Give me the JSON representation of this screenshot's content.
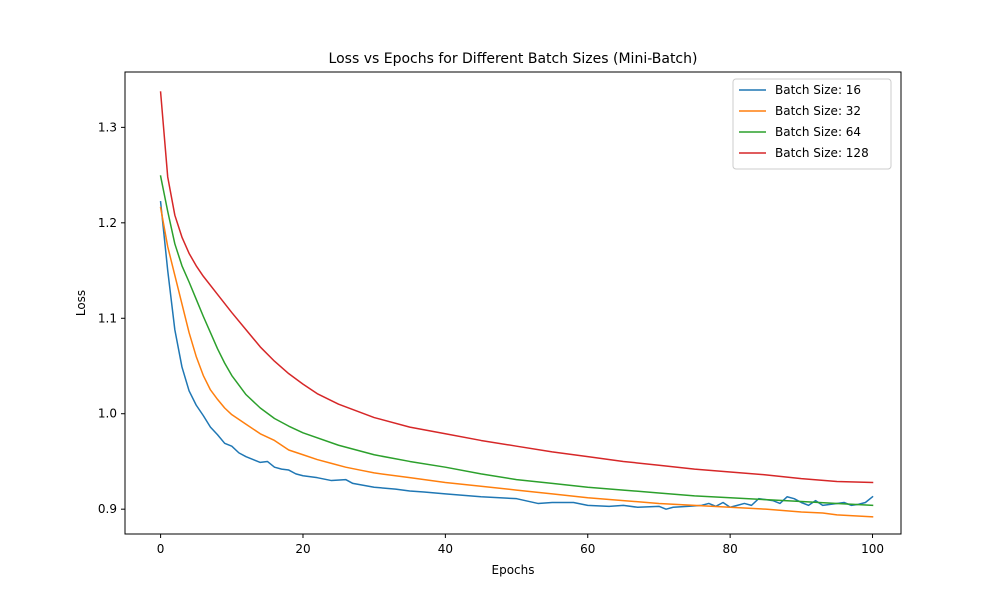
{
  "chart_data": {
    "type": "line",
    "title": "Loss vs Epochs for Different Batch Sizes (Mini-Batch)",
    "xlabel": "Epochs",
    "ylabel": "Loss",
    "xlim": [
      -5,
      104
    ],
    "ylim": [
      0.874,
      1.358
    ],
    "x_ticks": [
      0,
      20,
      40,
      60,
      80,
      100
    ],
    "y_ticks": [
      0.9,
      1.0,
      1.1,
      1.2,
      1.3
    ],
    "x_tick_labels": [
      "0",
      "20",
      "40",
      "60",
      "80",
      "100"
    ],
    "y_tick_labels": [
      "0.9",
      "1.0",
      "1.1",
      "1.2",
      "1.3"
    ],
    "grid": false,
    "legend_position": "top-right",
    "series": [
      {
        "name": "Batch Size: 16",
        "color": "#1f77b4",
        "points": [
          [
            0,
            1.222
          ],
          [
            1,
            1.15
          ],
          [
            2,
            1.088
          ],
          [
            3,
            1.049
          ],
          [
            4,
            1.024
          ],
          [
            5,
            1.009
          ],
          [
            6,
            0.998
          ],
          [
            7,
            0.986
          ],
          [
            8,
            0.978
          ],
          [
            9,
            0.969
          ],
          [
            10,
            0.966
          ],
          [
            11,
            0.959
          ],
          [
            12,
            0.955
          ],
          [
            13,
            0.952
          ],
          [
            14,
            0.949
          ],
          [
            15,
            0.95
          ],
          [
            16,
            0.944
          ],
          [
            17,
            0.942
          ],
          [
            18,
            0.941
          ],
          [
            19,
            0.937
          ],
          [
            20,
            0.935
          ],
          [
            22,
            0.933
          ],
          [
            24,
            0.93
          ],
          [
            26,
            0.931
          ],
          [
            27,
            0.927
          ],
          [
            30,
            0.923
          ],
          [
            33,
            0.921
          ],
          [
            35,
            0.919
          ],
          [
            37,
            0.918
          ],
          [
            40,
            0.916
          ],
          [
            45,
            0.913
          ],
          [
            50,
            0.911
          ],
          [
            53,
            0.906
          ],
          [
            55,
            0.907
          ],
          [
            58,
            0.907
          ],
          [
            60,
            0.904
          ],
          [
            63,
            0.903
          ],
          [
            65,
            0.904
          ],
          [
            67,
            0.902
          ],
          [
            70,
            0.903
          ],
          [
            71,
            0.9
          ],
          [
            72,
            0.902
          ],
          [
            74,
            0.903
          ],
          [
            76,
            0.904
          ],
          [
            77,
            0.906
          ],
          [
            78,
            0.903
          ],
          [
            79,
            0.907
          ],
          [
            80,
            0.902
          ],
          [
            81,
            0.904
          ],
          [
            82,
            0.906
          ],
          [
            83,
            0.904
          ],
          [
            84,
            0.911
          ],
          [
            85,
            0.91
          ],
          [
            86,
            0.909
          ],
          [
            87,
            0.906
          ],
          [
            88,
            0.913
          ],
          [
            89,
            0.911
          ],
          [
            90,
            0.907
          ],
          [
            91,
            0.904
          ],
          [
            92,
            0.909
          ],
          [
            93,
            0.904
          ],
          [
            95,
            0.906
          ],
          [
            96,
            0.907
          ],
          [
            97,
            0.904
          ],
          [
            98,
            0.905
          ],
          [
            99,
            0.907
          ],
          [
            100,
            0.913
          ]
        ]
      },
      {
        "name": "Batch Size: 32",
        "color": "#ff7f0e",
        "points": [
          [
            0,
            1.216
          ],
          [
            1,
            1.175
          ],
          [
            2,
            1.145
          ],
          [
            3,
            1.115
          ],
          [
            4,
            1.085
          ],
          [
            5,
            1.06
          ],
          [
            6,
            1.04
          ],
          [
            7,
            1.025
          ],
          [
            8,
            1.015
          ],
          [
            9,
            1.006
          ],
          [
            10,
            0.999
          ],
          [
            12,
            0.989
          ],
          [
            14,
            0.979
          ],
          [
            16,
            0.972
          ],
          [
            18,
            0.962
          ],
          [
            20,
            0.957
          ],
          [
            22,
            0.952
          ],
          [
            24,
            0.948
          ],
          [
            26,
            0.944
          ],
          [
            28,
            0.941
          ],
          [
            30,
            0.938
          ],
          [
            35,
            0.933
          ],
          [
            40,
            0.928
          ],
          [
            45,
            0.924
          ],
          [
            50,
            0.92
          ],
          [
            55,
            0.916
          ],
          [
            60,
            0.912
          ],
          [
            65,
            0.909
          ],
          [
            70,
            0.906
          ],
          [
            75,
            0.904
          ],
          [
            80,
            0.902
          ],
          [
            85,
            0.9
          ],
          [
            90,
            0.897
          ],
          [
            93,
            0.896
          ],
          [
            95,
            0.894
          ],
          [
            100,
            0.892
          ]
        ]
      },
      {
        "name": "Batch Size: 64",
        "color": "#2ca02c",
        "points": [
          [
            0,
            1.249
          ],
          [
            1,
            1.212
          ],
          [
            2,
            1.178
          ],
          [
            3,
            1.155
          ],
          [
            4,
            1.138
          ],
          [
            5,
            1.12
          ],
          [
            6,
            1.102
          ],
          [
            7,
            1.085
          ],
          [
            8,
            1.068
          ],
          [
            9,
            1.053
          ],
          [
            10,
            1.04
          ],
          [
            12,
            1.02
          ],
          [
            14,
            1.006
          ],
          [
            16,
            0.995
          ],
          [
            18,
            0.987
          ],
          [
            20,
            0.98
          ],
          [
            25,
            0.967
          ],
          [
            30,
            0.957
          ],
          [
            35,
            0.95
          ],
          [
            40,
            0.944
          ],
          [
            45,
            0.937
          ],
          [
            50,
            0.931
          ],
          [
            55,
            0.927
          ],
          [
            60,
            0.923
          ],
          [
            65,
            0.92
          ],
          [
            70,
            0.917
          ],
          [
            75,
            0.914
          ],
          [
            80,
            0.912
          ],
          [
            85,
            0.91
          ],
          [
            90,
            0.908
          ],
          [
            95,
            0.906
          ],
          [
            100,
            0.904
          ]
        ]
      },
      {
        "name": "Batch Size: 128",
        "color": "#d62728",
        "points": [
          [
            0,
            1.337
          ],
          [
            1,
            1.248
          ],
          [
            2,
            1.208
          ],
          [
            3,
            1.185
          ],
          [
            4,
            1.168
          ],
          [
            5,
            1.155
          ],
          [
            6,
            1.144
          ],
          [
            8,
            1.125
          ],
          [
            10,
            1.106
          ],
          [
            12,
            1.088
          ],
          [
            14,
            1.07
          ],
          [
            16,
            1.055
          ],
          [
            18,
            1.042
          ],
          [
            20,
            1.031
          ],
          [
            22,
            1.021
          ],
          [
            25,
            1.01
          ],
          [
            30,
            0.996
          ],
          [
            35,
            0.986
          ],
          [
            40,
            0.979
          ],
          [
            45,
            0.972
          ],
          [
            50,
            0.966
          ],
          [
            55,
            0.96
          ],
          [
            60,
            0.955
          ],
          [
            65,
            0.95
          ],
          [
            70,
            0.946
          ],
          [
            75,
            0.942
          ],
          [
            80,
            0.939
          ],
          [
            85,
            0.936
          ],
          [
            90,
            0.932
          ],
          [
            95,
            0.929
          ],
          [
            100,
            0.928
          ]
        ]
      }
    ]
  }
}
